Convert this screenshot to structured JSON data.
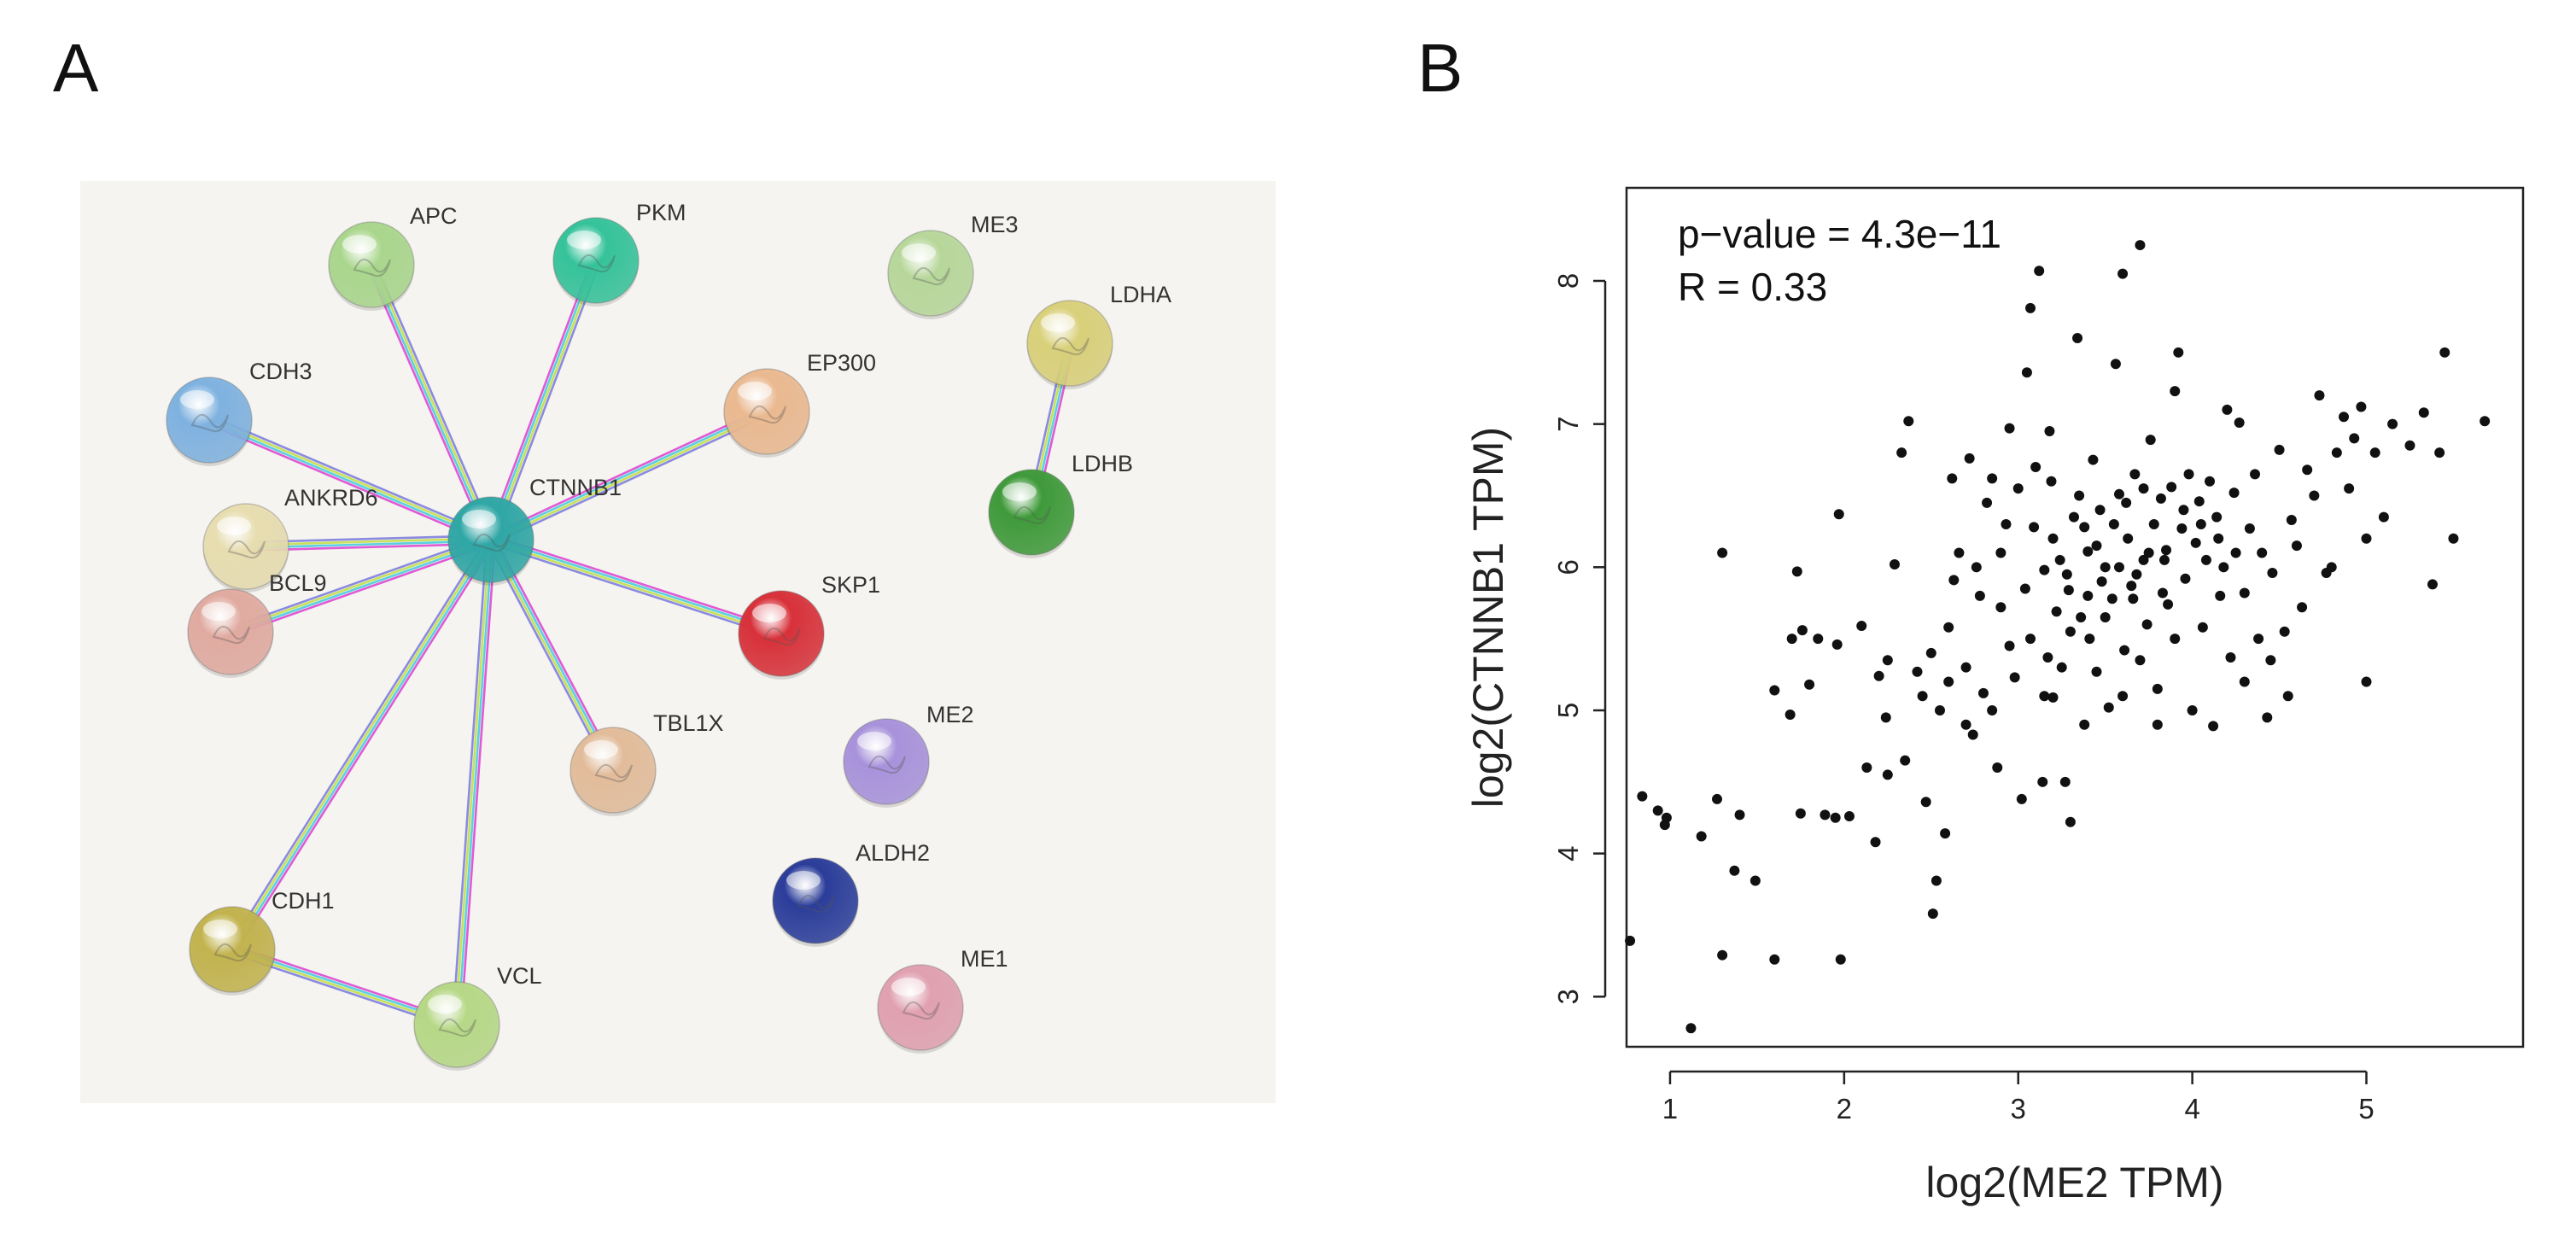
{
  "panels": {
    "a_label": "A",
    "b_label": "B"
  },
  "network": {
    "center": "CTNNB1",
    "nodes": [
      {
        "id": "CTNNB1",
        "color": "#2fa7a6"
      },
      {
        "id": "APC",
        "color": "#a9d68c"
      },
      {
        "id": "PKM",
        "color": "#35c39a"
      },
      {
        "id": "CDH3",
        "color": "#7fb2e0"
      },
      {
        "id": "ANKRD6",
        "color": "#e7ddb0"
      },
      {
        "id": "BCL9",
        "color": "#e0aaa0"
      },
      {
        "id": "EP300",
        "color": "#eab990"
      },
      {
        "id": "SKP1",
        "color": "#d8313a"
      },
      {
        "id": "TBL1X",
        "color": "#e2bc9a"
      },
      {
        "id": "CDH1",
        "color": "#c2b34e"
      },
      {
        "id": "VCL",
        "color": "#b6d886"
      },
      {
        "id": "ME3",
        "color": "#b7d79a"
      },
      {
        "id": "LDHA",
        "color": "#d9d07a"
      },
      {
        "id": "LDHB",
        "color": "#3f9a3a"
      },
      {
        "id": "ME2",
        "color": "#a892db"
      },
      {
        "id": "ALDH2",
        "color": "#2b3d9a"
      },
      {
        "id": "ME1",
        "color": "#e0a0b0"
      }
    ],
    "edges": [
      [
        "CTNNB1",
        "APC"
      ],
      [
        "CTNNB1",
        "PKM"
      ],
      [
        "CTNNB1",
        "CDH3"
      ],
      [
        "CTNNB1",
        "ANKRD6"
      ],
      [
        "CTNNB1",
        "BCL9"
      ],
      [
        "CTNNB1",
        "EP300"
      ],
      [
        "CTNNB1",
        "SKP1"
      ],
      [
        "CTNNB1",
        "TBL1X"
      ],
      [
        "CTNNB1",
        "CDH1"
      ],
      [
        "CTNNB1",
        "VCL"
      ],
      [
        "CDH1",
        "VCL"
      ],
      [
        "LDHA",
        "LDHB"
      ]
    ]
  },
  "chart_data": {
    "type": "scatter",
    "xlabel": "log2(ME2 TPM)",
    "ylabel": "log2(CTNNB1 TPM)",
    "xlim": [
      0.75,
      5.9
    ],
    "ylim": [
      2.65,
      8.65
    ],
    "xticks": [
      1,
      2,
      3,
      4,
      5
    ],
    "yticks": [
      3,
      4,
      5,
      6,
      7,
      8
    ],
    "annotations": {
      "pvalue": "p−value = 4.3e−11",
      "r": "R = 0.33"
    },
    "points": [
      [
        0.77,
        3.39
      ],
      [
        0.84,
        4.4
      ],
      [
        0.93,
        4.3
      ],
      [
        0.97,
        4.2
      ],
      [
        0.98,
        4.25
      ],
      [
        1.12,
        2.78
      ],
      [
        1.18,
        4.12
      ],
      [
        1.27,
        4.38
      ],
      [
        1.3,
        3.29
      ],
      [
        1.3,
        6.1
      ],
      [
        1.37,
        3.88
      ],
      [
        1.4,
        4.27
      ],
      [
        1.49,
        3.81
      ],
      [
        1.6,
        3.26
      ],
      [
        1.6,
        5.14
      ],
      [
        1.69,
        4.97
      ],
      [
        1.7,
        5.5
      ],
      [
        1.75,
        4.28
      ],
      [
        1.73,
        5.97
      ],
      [
        1.76,
        5.56
      ],
      [
        1.8,
        5.18
      ],
      [
        1.85,
        5.5
      ],
      [
        1.89,
        4.27
      ],
      [
        1.95,
        4.25
      ],
      [
        1.96,
        5.46
      ],
      [
        1.97,
        6.37
      ],
      [
        1.98,
        3.26
      ],
      [
        2.03,
        4.26
      ],
      [
        2.1,
        5.59
      ],
      [
        2.13,
        4.6
      ],
      [
        2.18,
        4.08
      ],
      [
        2.2,
        5.24
      ],
      [
        2.24,
        4.95
      ],
      [
        2.25,
        4.55
      ],
      [
        2.29,
        6.02
      ],
      [
        2.33,
        6.8
      ],
      [
        2.37,
        7.02
      ],
      [
        2.42,
        5.27
      ],
      [
        2.47,
        4.36
      ],
      [
        2.5,
        5.4
      ],
      [
        2.53,
        3.81
      ],
      [
        2.51,
        3.58
      ],
      [
        2.55,
        5.0
      ],
      [
        2.58,
        4.14
      ],
      [
        2.6,
        5.58
      ],
      [
        2.63,
        5.91
      ],
      [
        2.66,
        6.1
      ],
      [
        2.7,
        5.3
      ],
      [
        2.72,
        6.76
      ],
      [
        2.74,
        4.83
      ],
      [
        2.76,
        6.0
      ],
      [
        2.8,
        5.12
      ],
      [
        2.82,
        6.45
      ],
      [
        2.85,
        6.62
      ],
      [
        2.88,
        4.6
      ],
      [
        2.9,
        5.72
      ],
      [
        2.93,
        6.3
      ],
      [
        2.95,
        6.97
      ],
      [
        2.98,
        5.23
      ],
      [
        3.0,
        6.55
      ],
      [
        3.02,
        4.38
      ],
      [
        3.04,
        5.85
      ],
      [
        3.07,
        5.5
      ],
      [
        3.07,
        7.81
      ],
      [
        3.09,
        6.28
      ],
      [
        3.12,
        8.07
      ],
      [
        3.14,
        4.5
      ],
      [
        3.15,
        5.98
      ],
      [
        3.17,
        5.37
      ],
      [
        3.19,
        6.6
      ],
      [
        3.2,
        5.09
      ],
      [
        3.22,
        5.69
      ],
      [
        3.24,
        6.05
      ],
      [
        3.27,
        4.5
      ],
      [
        3.29,
        5.84
      ],
      [
        3.3,
        4.22
      ],
      [
        3.32,
        6.35
      ],
      [
        3.34,
        7.6
      ],
      [
        3.36,
        5.65
      ],
      [
        3.38,
        4.9
      ],
      [
        3.4,
        6.11
      ],
      [
        3.41,
        5.5
      ],
      [
        3.43,
        6.75
      ],
      [
        3.45,
        5.27
      ],
      [
        3.47,
        6.4
      ],
      [
        3.5,
        6.0
      ],
      [
        3.52,
        5.02
      ],
      [
        3.54,
        5.78
      ],
      [
        3.56,
        7.42
      ],
      [
        3.58,
        6.51
      ],
      [
        3.6,
        8.05
      ],
      [
        3.61,
        5.42
      ],
      [
        3.63,
        6.2
      ],
      [
        3.65,
        5.87
      ],
      [
        3.67,
        6.65
      ],
      [
        3.7,
        8.25
      ],
      [
        3.72,
        6.05
      ],
      [
        3.74,
        5.6
      ],
      [
        3.76,
        6.89
      ],
      [
        3.78,
        6.3
      ],
      [
        3.8,
        5.15
      ],
      [
        3.82,
        6.48
      ],
      [
        3.84,
        6.05
      ],
      [
        3.86,
        5.74
      ],
      [
        3.88,
        6.56
      ],
      [
        3.9,
        7.23
      ],
      [
        3.92,
        7.5
      ],
      [
        3.94,
        6.27
      ],
      [
        3.96,
        5.92
      ],
      [
        3.98,
        6.65
      ],
      [
        4.0,
        5.0
      ],
      [
        4.02,
        6.17
      ],
      [
        4.04,
        6.46
      ],
      [
        4.06,
        5.58
      ],
      [
        4.08,
        6.05
      ],
      [
        4.1,
        6.6
      ],
      [
        4.12,
        4.89
      ],
      [
        4.14,
        6.35
      ],
      [
        4.16,
        5.8
      ],
      [
        4.18,
        6.0
      ],
      [
        4.2,
        7.1
      ],
      [
        4.22,
        5.37
      ],
      [
        4.24,
        6.52
      ],
      [
        4.27,
        7.01
      ],
      [
        4.3,
        5.82
      ],
      [
        4.33,
        6.27
      ],
      [
        4.36,
        6.65
      ],
      [
        4.38,
        5.5
      ],
      [
        4.4,
        6.1
      ],
      [
        4.43,
        4.95
      ],
      [
        4.46,
        5.96
      ],
      [
        4.5,
        6.82
      ],
      [
        4.53,
        5.55
      ],
      [
        4.57,
        6.33
      ],
      [
        4.6,
        6.15
      ],
      [
        4.63,
        5.72
      ],
      [
        4.66,
        6.68
      ],
      [
        4.7,
        6.5
      ],
      [
        4.73,
        7.2
      ],
      [
        4.77,
        5.96
      ],
      [
        4.8,
        6.0
      ],
      [
        4.83,
        6.8
      ],
      [
        4.87,
        7.05
      ],
      [
        4.9,
        6.55
      ],
      [
        4.93,
        6.9
      ],
      [
        4.97,
        7.12
      ],
      [
        5.0,
        6.2
      ],
      [
        5.0,
        5.2
      ],
      [
        5.05,
        6.8
      ],
      [
        5.1,
        6.35
      ],
      [
        5.15,
        7.0
      ],
      [
        5.25,
        6.85
      ],
      [
        5.33,
        7.08
      ],
      [
        5.38,
        5.88
      ],
      [
        5.42,
        6.8
      ],
      [
        5.45,
        7.5
      ],
      [
        5.5,
        6.2
      ],
      [
        5.68,
        7.02
      ],
      [
        3.05,
        7.36
      ],
      [
        3.18,
        6.95
      ],
      [
        2.62,
        6.62
      ],
      [
        2.78,
        5.8
      ],
      [
        2.9,
        6.1
      ],
      [
        3.1,
        6.7
      ],
      [
        3.35,
        6.5
      ],
      [
        3.45,
        6.15
      ],
      [
        3.55,
        6.3
      ],
      [
        3.62,
        6.45
      ],
      [
        3.68,
        5.95
      ],
      [
        3.72,
        6.55
      ],
      [
        3.85,
        6.12
      ],
      [
        3.95,
        6.4
      ],
      [
        4.05,
        6.3
      ],
      [
        4.15,
        6.2
      ],
      [
        4.25,
        6.1
      ],
      [
        3.25,
        5.3
      ],
      [
        3.15,
        5.1
      ],
      [
        3.3,
        5.55
      ],
      [
        3.4,
        5.8
      ],
      [
        3.5,
        5.65
      ],
      [
        2.95,
        5.45
      ],
      [
        2.85,
        5.0
      ],
      [
        2.7,
        4.9
      ],
      [
        2.6,
        5.2
      ],
      [
        2.45,
        5.1
      ],
      [
        2.35,
        4.65
      ],
      [
        2.25,
        5.35
      ],
      [
        3.6,
        5.1
      ],
      [
        3.7,
        5.35
      ],
      [
        3.8,
        4.9
      ],
      [
        3.9,
        5.5
      ],
      [
        4.3,
        5.2
      ],
      [
        4.45,
        5.35
      ],
      [
        4.55,
        5.1
      ],
      [
        3.2,
        6.2
      ],
      [
        3.28,
        5.95
      ],
      [
        3.38,
        6.28
      ],
      [
        3.48,
        5.9
      ],
      [
        3.58,
        6.0
      ],
      [
        3.66,
        5.78
      ],
      [
        3.75,
        6.1
      ],
      [
        3.83,
        5.82
      ]
    ]
  }
}
